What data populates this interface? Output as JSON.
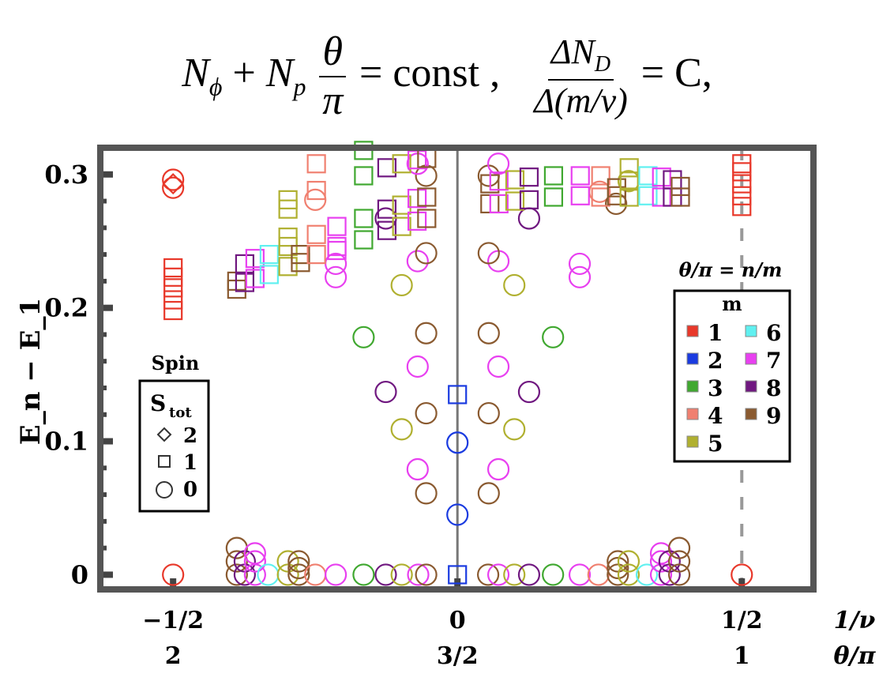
{
  "formula": {
    "lhs_a": "N",
    "lhs_a_sub": "ϕ",
    "plus": "+",
    "lhs_b": "N",
    "lhs_b_sub": "p",
    "frac1_num": "θ",
    "frac1_den": "π",
    "eq1": "= const ,",
    "frac2_num": "ΔN",
    "frac2_num_sub": "D",
    "frac2_den": "Δ(m/ν)",
    "eq2": "= C,"
  },
  "chart_data": {
    "type": "scatter",
    "ylabel": "E_n − E_1",
    "xlabel_top": "1/ν",
    "xlabel_bottom": "θ/π",
    "xlim": [
      -0.628,
      0.626
    ],
    "ylim": [
      -0.011,
      0.32
    ],
    "yticks": [
      {
        "v": 0,
        "label": "0"
      },
      {
        "v": 0.1,
        "label": "0.1"
      },
      {
        "v": 0.2,
        "label": "0.2"
      },
      {
        "v": 0.3,
        "label": "0.3"
      }
    ],
    "xticks": [
      {
        "v": -0.5,
        "label": "−1/2",
        "label2": "2"
      },
      {
        "v": 0,
        "label": "0",
        "label2": "3/2"
      },
      {
        "v": 0.5,
        "label": "1/2",
        "label2": "1"
      }
    ],
    "reference_lines": [
      {
        "x": 0,
        "style": "solid"
      },
      {
        "x": 0.5,
        "style": "dashed"
      }
    ],
    "colors": {
      "1": "#e8382a",
      "2": "#1a3be0",
      "3": "#40a830",
      "4": "#f08070",
      "5": "#b0b030",
      "6": "#60f0f0",
      "7": "#e840f0",
      "8": "#701880",
      "9": "#8a5a30"
    },
    "legend_m": {
      "title_top": "θ/π = n/m",
      "title": "m",
      "entries": [
        "1",
        "2",
        "3",
        "4",
        "5",
        "6",
        "7",
        "8",
        "9"
      ],
      "placement": "right"
    },
    "legend_spin": {
      "title_top": "Spin",
      "title": "S",
      "title_sub": "tot",
      "entries": [
        {
          "shape": "diamond",
          "label": "2"
        },
        {
          "shape": "square",
          "label": "1"
        },
        {
          "shape": "circle",
          "label": "0"
        }
      ],
      "placement": "left"
    },
    "point_fields": [
      "m",
      "S_tot",
      "x",
      "y"
    ],
    "points": [
      [
        1,
        0,
        -0.5,
        0
      ],
      [
        1,
        2,
        -0.5,
        0.293
      ],
      [
        1,
        0,
        -0.5,
        0.296
      ],
      [
        1,
        0,
        -0.5,
        0.29
      ],
      [
        1,
        1,
        -0.5,
        0.23
      ],
      [
        1,
        1,
        -0.5,
        0.223
      ],
      [
        1,
        1,
        -0.5,
        0.215
      ],
      [
        1,
        1,
        -0.5,
        0.206
      ],
      [
        1,
        1,
        -0.5,
        0.198
      ],
      [
        1,
        0,
        0.5,
        0
      ],
      [
        1,
        1,
        0.5,
        0.308
      ],
      [
        1,
        1,
        0.5,
        0.302
      ],
      [
        1,
        1,
        0.5,
        0.293
      ],
      [
        1,
        1,
        0.5,
        0.284
      ],
      [
        1,
        1,
        0.5,
        0.276
      ],
      [
        2,
        1,
        0,
        0
      ],
      [
        2,
        0,
        0,
        0.045
      ],
      [
        2,
        0,
        0,
        0.099
      ],
      [
        2,
        1,
        0,
        0.135
      ],
      [
        9,
        0,
        -0.388,
        0
      ],
      [
        9,
        0,
        -0.388,
        0.01
      ],
      [
        9,
        0,
        -0.388,
        0.02
      ],
      [
        8,
        0,
        -0.374,
        0
      ],
      [
        8,
        0,
        -0.374,
        0.01
      ],
      [
        7,
        0,
        -0.356,
        0
      ],
      [
        7,
        0,
        -0.356,
        0.01
      ],
      [
        7,
        0,
        -0.356,
        0.016
      ],
      [
        6,
        0,
        -0.333,
        0
      ],
      [
        5,
        0,
        -0.298,
        0
      ],
      [
        5,
        0,
        -0.298,
        0.01
      ],
      [
        9,
        0,
        -0.279,
        0
      ],
      [
        9,
        0,
        -0.279,
        0.005
      ],
      [
        9,
        0,
        -0.279,
        0.01
      ],
      [
        4,
        0,
        -0.25,
        0
      ],
      [
        7,
        0,
        -0.214,
        0
      ],
      [
        3,
        0,
        -0.165,
        0
      ],
      [
        8,
        0,
        -0.126,
        0
      ],
      [
        5,
        0,
        -0.098,
        0
      ],
      [
        7,
        0,
        -0.069,
        0
      ],
      [
        9,
        0,
        -0.055,
        0
      ],
      [
        9,
        0,
        0.054,
        0
      ],
      [
        7,
        0,
        0.072,
        0
      ],
      [
        5,
        0,
        0.1,
        0
      ],
      [
        8,
        0,
        0.126,
        0
      ],
      [
        3,
        0,
        0.168,
        0
      ],
      [
        7,
        0,
        0.215,
        0
      ],
      [
        4,
        0,
        0.248,
        0
      ],
      [
        9,
        0,
        0.282,
        0
      ],
      [
        9,
        0,
        0.282,
        0.005
      ],
      [
        9,
        0,
        0.282,
        0.01
      ],
      [
        5,
        0,
        0.301,
        0
      ],
      [
        5,
        0,
        0.301,
        0.01
      ],
      [
        6,
        0,
        0.333,
        0
      ],
      [
        7,
        0,
        0.358,
        0
      ],
      [
        7,
        0,
        0.358,
        0.01
      ],
      [
        7,
        0,
        0.358,
        0.016
      ],
      [
        8,
        0,
        0.373,
        0
      ],
      [
        8,
        0,
        0.373,
        0.01
      ],
      [
        9,
        0,
        0.39,
        0
      ],
      [
        9,
        0,
        0.39,
        0.01
      ],
      [
        9,
        0,
        0.39,
        0.02
      ],
      [
        9,
        0,
        -0.055,
        0.061
      ],
      [
        7,
        0,
        -0.07,
        0.079
      ],
      [
        5,
        0,
        -0.098,
        0.109
      ],
      [
        9,
        0,
        -0.055,
        0.121
      ],
      [
        8,
        0,
        -0.126,
        0.137
      ],
      [
        7,
        0,
        -0.07,
        0.156
      ],
      [
        9,
        0,
        -0.055,
        0.181
      ],
      [
        3,
        0,
        -0.165,
        0.178
      ],
      [
        5,
        0,
        -0.098,
        0.217
      ],
      [
        7,
        0,
        -0.214,
        0.223
      ],
      [
        7,
        0,
        -0.214,
        0.233
      ],
      [
        7,
        0,
        -0.07,
        0.235
      ],
      [
        9,
        0,
        -0.055,
        0.241
      ],
      [
        4,
        0,
        -0.25,
        0.281
      ],
      [
        8,
        0,
        -0.126,
        0.267
      ],
      [
        9,
        0,
        -0.055,
        0.299
      ],
      [
        7,
        0,
        -0.07,
        0.308
      ],
      [
        9,
        0,
        0.055,
        0.061
      ],
      [
        7,
        0,
        0.072,
        0.079
      ],
      [
        5,
        0,
        0.1,
        0.109
      ],
      [
        9,
        0,
        0.055,
        0.121
      ],
      [
        8,
        0,
        0.126,
        0.137
      ],
      [
        7,
        0,
        0.072,
        0.156
      ],
      [
        9,
        0,
        0.055,
        0.181
      ],
      [
        3,
        0,
        0.168,
        0.178
      ],
      [
        5,
        0,
        0.1,
        0.217
      ],
      [
        7,
        0,
        0.215,
        0.223
      ],
      [
        7,
        0,
        0.215,
        0.233
      ],
      [
        7,
        0,
        0.072,
        0.235
      ],
      [
        9,
        0,
        0.055,
        0.241
      ],
      [
        8,
        0,
        0.126,
        0.267
      ],
      [
        9,
        0,
        0.055,
        0.299
      ],
      [
        7,
        0,
        0.072,
        0.308
      ],
      [
        4,
        0,
        0.25,
        0.287
      ],
      [
        9,
        0,
        0.279,
        0.278
      ],
      [
        5,
        0,
        0.301,
        0.295
      ],
      [
        9,
        1,
        -0.388,
        0.22
      ],
      [
        9,
        1,
        -0.388,
        0.214
      ],
      [
        8,
        1,
        -0.374,
        0.233
      ],
      [
        8,
        1,
        -0.374,
        0.219
      ],
      [
        7,
        1,
        -0.356,
        0.237
      ],
      [
        7,
        1,
        -0.356,
        0.222
      ],
      [
        6,
        1,
        -0.331,
        0.24
      ],
      [
        6,
        1,
        -0.331,
        0.225
      ],
      [
        5,
        1,
        -0.298,
        0.281
      ],
      [
        5,
        1,
        -0.298,
        0.274
      ],
      [
        5,
        1,
        -0.298,
        0.253
      ],
      [
        5,
        1,
        -0.298,
        0.246
      ],
      [
        5,
        1,
        -0.298,
        0.231
      ],
      [
        9,
        1,
        -0.276,
        0.24
      ],
      [
        9,
        1,
        -0.276,
        0.234
      ],
      [
        4,
        1,
        -0.248,
        0.308
      ],
      [
        4,
        1,
        -0.248,
        0.288
      ],
      [
        4,
        1,
        -0.248,
        0.255
      ],
      [
        4,
        1,
        -0.248,
        0.24
      ],
      [
        7,
        1,
        -0.212,
        0.261
      ],
      [
        7,
        1,
        -0.212,
        0.246
      ],
      [
        7,
        1,
        -0.212,
        0.243
      ],
      [
        3,
        1,
        -0.165,
        0.318
      ],
      [
        3,
        1,
        -0.165,
        0.299
      ],
      [
        3,
        1,
        -0.165,
        0.267
      ],
      [
        3,
        1,
        -0.165,
        0.251
      ],
      [
        8,
        1,
        -0.124,
        0.305
      ],
      [
        8,
        1,
        -0.124,
        0.274
      ],
      [
        8,
        1,
        -0.124,
        0.258
      ],
      [
        5,
        1,
        -0.098,
        0.308
      ],
      [
        5,
        1,
        -0.098,
        0.277
      ],
      [
        5,
        1,
        -0.098,
        0.261
      ],
      [
        7,
        1,
        -0.071,
        0.311
      ],
      [
        7,
        1,
        -0.071,
        0.282
      ],
      [
        7,
        1,
        -0.071,
        0.265
      ],
      [
        9,
        1,
        -0.054,
        0.312
      ],
      [
        9,
        1,
        -0.054,
        0.283
      ],
      [
        9,
        1,
        -0.054,
        0.267
      ],
      [
        9,
        1,
        0.057,
        0.293
      ],
      [
        9,
        1,
        0.057,
        0.278
      ],
      [
        7,
        1,
        0.073,
        0.295
      ],
      [
        7,
        1,
        0.073,
        0.278
      ],
      [
        5,
        1,
        0.101,
        0.296
      ],
      [
        5,
        1,
        0.101,
        0.28
      ],
      [
        8,
        1,
        0.126,
        0.298
      ],
      [
        8,
        1,
        0.126,
        0.281
      ],
      [
        3,
        1,
        0.169,
        0.299
      ],
      [
        3,
        1,
        0.169,
        0.283
      ],
      [
        7,
        1,
        0.216,
        0.299
      ],
      [
        7,
        1,
        0.216,
        0.284
      ],
      [
        4,
        1,
        0.252,
        0.299
      ],
      [
        4,
        1,
        0.252,
        0.283
      ],
      [
        9,
        1,
        0.28,
        0.29
      ],
      [
        9,
        1,
        0.28,
        0.284
      ],
      [
        5,
        1,
        0.302,
        0.305
      ],
      [
        5,
        1,
        0.302,
        0.295
      ],
      [
        5,
        1,
        0.302,
        0.283
      ],
      [
        6,
        1,
        0.335,
        0.299
      ],
      [
        6,
        1,
        0.335,
        0.284
      ],
      [
        7,
        1,
        0.359,
        0.298
      ],
      [
        7,
        1,
        0.359,
        0.283
      ],
      [
        8,
        1,
        0.378,
        0.296
      ],
      [
        8,
        1,
        0.378,
        0.283
      ],
      [
        9,
        1,
        0.392,
        0.291
      ],
      [
        9,
        1,
        0.392,
        0.283
      ]
    ]
  }
}
